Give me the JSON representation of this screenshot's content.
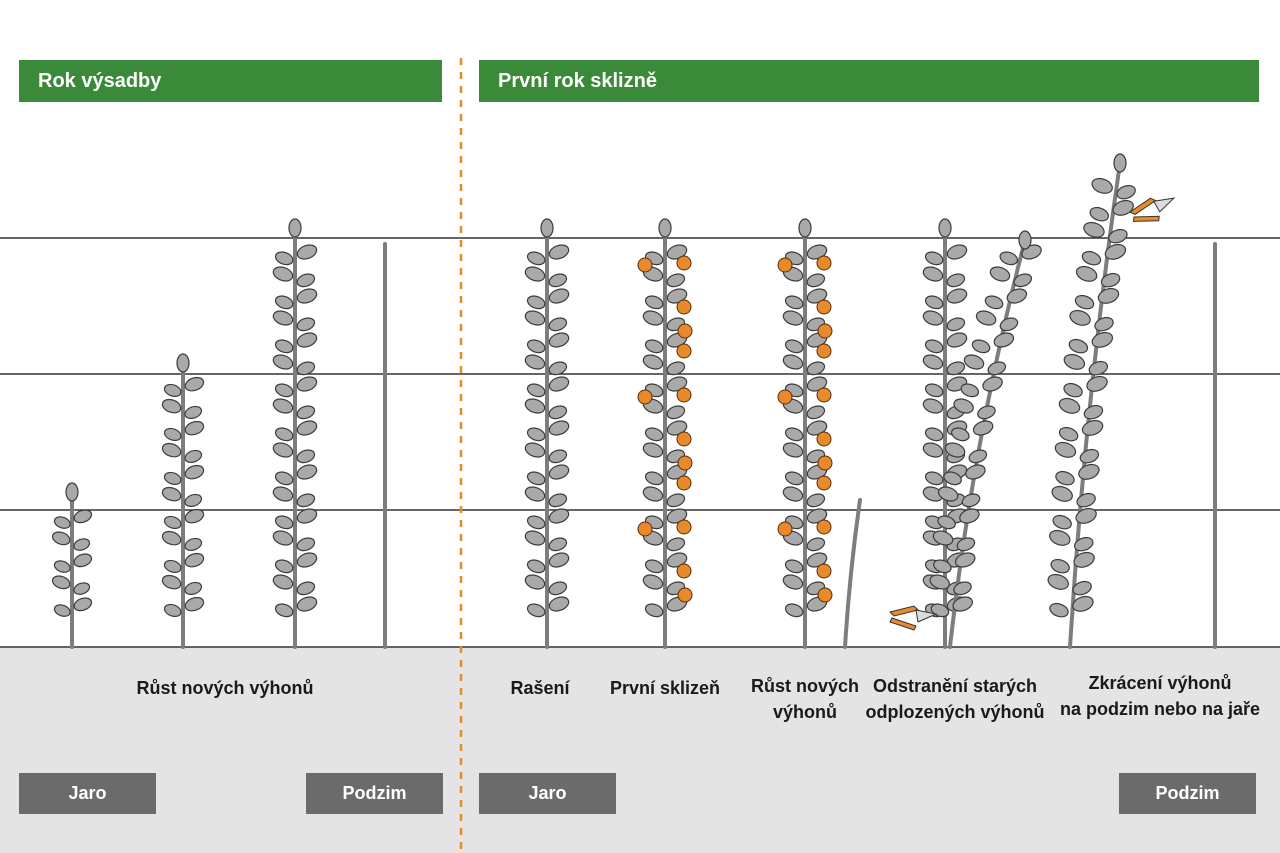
{
  "sections": {
    "left_header": "Rok výsadby",
    "right_header": "První rok sklizně"
  },
  "captions": {
    "left": "Růst nových výhonů",
    "rašení": "Rašení",
    "sklizen": "První sklizeň",
    "rust_line1": "Růst nových",
    "rust_line2": "výhonů",
    "odstraneni_line1": "Odstranění starých",
    "odstraneni_line2": "odplozených výhonů",
    "zkraceni_line1": "Zkrácení výhonů",
    "zkraceni_line2": "na podzim nebo na jaře"
  },
  "seasons": {
    "left_spring": "Jaro",
    "left_autumn": "Podzim",
    "right_spring": "Jaro",
    "right_autumn": "Podzim"
  },
  "colors": {
    "header_green": "#3b8a3a",
    "season_gray": "#6b6b6b",
    "ground_gray": "#e4e4e4",
    "divider_orange": "#e8892b",
    "berry_orange": "#e8892b"
  }
}
